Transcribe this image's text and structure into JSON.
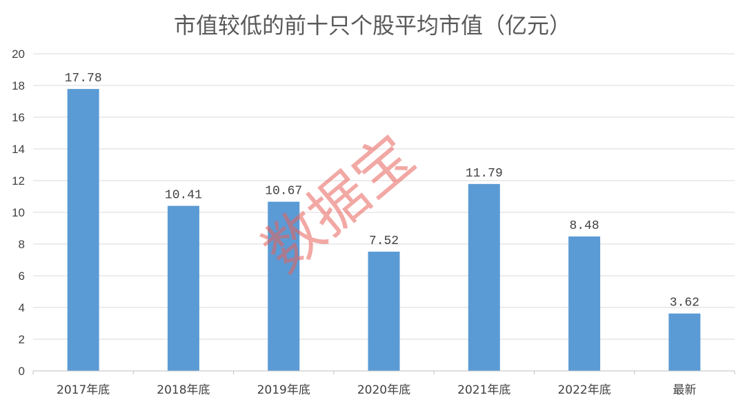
{
  "chart_data": {
    "type": "bar",
    "title": "市值较低的前十只个股平均市值（亿元）",
    "xlabel": "",
    "ylabel": "",
    "categories": [
      "2017年底",
      "2018年底",
      "2019年底",
      "2020年底",
      "2021年底",
      "2022年底",
      "最新"
    ],
    "values": [
      17.78,
      10.41,
      10.67,
      7.52,
      11.79,
      8.48,
      3.62
    ],
    "value_labels": [
      "17.78",
      "10.41",
      "10.67",
      "7.52",
      "11.79",
      "8.48",
      "3.62"
    ],
    "ylim": [
      0,
      20
    ],
    "y_ticks": [
      0,
      2,
      4,
      6,
      8,
      10,
      12,
      14,
      16,
      18,
      20
    ],
    "grid": true,
    "legend": "none",
    "bar_color": "#5b9bd5",
    "grid_color": "#d9d9d9",
    "axis_color": "#bfbfbf"
  },
  "watermark": {
    "text": "数据宝",
    "color": "#e8605a"
  }
}
